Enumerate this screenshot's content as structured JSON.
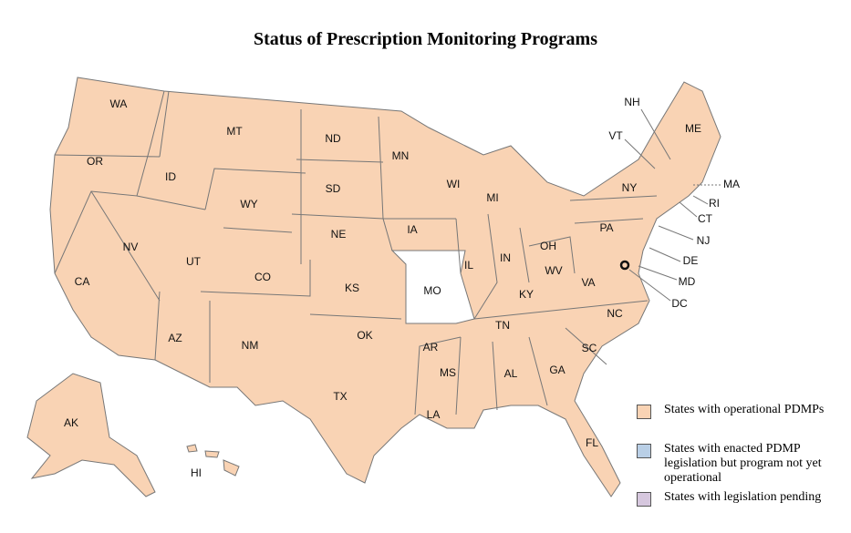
{
  "title": "Status of Prescription Monitoring Programs",
  "legend": [
    {
      "label": "States with operational PDMPs",
      "color": "#f9d3b4"
    },
    {
      "label": "States with enacted PDMP legislation but program not yet operational",
      "color": "#b9cfe6"
    },
    {
      "label": "States with legislation pending",
      "color": "#d6c7de"
    }
  ],
  "states": [
    {
      "label": "WA",
      "color": "#f9d3b4"
    },
    {
      "label": "OR",
      "color": "#f9d3b4"
    },
    {
      "label": "CA",
      "color": "#f9d3b4"
    },
    {
      "label": "NV",
      "color": "#f9d3b4"
    },
    {
      "label": "ID",
      "color": "#f9d3b4"
    },
    {
      "label": "MT",
      "color": "#f9d3b4"
    },
    {
      "label": "WY",
      "color": "#f9d3b4"
    },
    {
      "label": "UT",
      "color": "#f9d3b4"
    },
    {
      "label": "AZ",
      "color": "#f9d3b4"
    },
    {
      "label": "CO",
      "color": "#f9d3b4"
    },
    {
      "label": "NM",
      "color": "#f9d3b4"
    },
    {
      "label": "ND",
      "color": "#f9d3b4"
    },
    {
      "label": "SD",
      "color": "#f9d3b4"
    },
    {
      "label": "NE",
      "color": "#f9d3b4"
    },
    {
      "label": "KS",
      "color": "#f9d3b4"
    },
    {
      "label": "OK",
      "color": "#f9d3b4"
    },
    {
      "label": "TX",
      "color": "#f9d3b4"
    },
    {
      "label": "MN",
      "color": "#f9d3b4"
    },
    {
      "label": "IA",
      "color": "#f9d3b4"
    },
    {
      "label": "MO",
      "color": "#ffffff"
    },
    {
      "label": "AR",
      "color": "#f9d3b4"
    },
    {
      "label": "LA",
      "color": "#f9d3b4"
    },
    {
      "label": "WI",
      "color": "#f9d3b4"
    },
    {
      "label": "IL",
      "color": "#f9d3b4"
    },
    {
      "label": "MS",
      "color": "#f9d3b4"
    },
    {
      "label": "MI",
      "color": "#f9d3b4"
    },
    {
      "label": "IN",
      "color": "#f9d3b4"
    },
    {
      "label": "KY",
      "color": "#f9d3b4"
    },
    {
      "label": "TN",
      "color": "#f9d3b4"
    },
    {
      "label": "AL",
      "color": "#f9d3b4"
    },
    {
      "label": "OH",
      "color": "#f9d3b4"
    },
    {
      "label": "GA",
      "color": "#f9d3b4"
    },
    {
      "label": "FL",
      "color": "#f9d3b4"
    },
    {
      "label": "SC",
      "color": "#f9d3b4"
    },
    {
      "label": "NC",
      "color": "#f9d3b4"
    },
    {
      "label": "VA",
      "color": "#f9d3b4"
    },
    {
      "label": "WV",
      "color": "#f9d3b4"
    },
    {
      "label": "PA",
      "color": "#f9d3b4"
    },
    {
      "label": "NY",
      "color": "#f9d3b4"
    },
    {
      "label": "ME",
      "color": "#f9d3b4"
    },
    {
      "label": "NH",
      "color": "#f9d3b4"
    },
    {
      "label": "VT",
      "color": "#f9d3b4"
    },
    {
      "label": "MA",
      "color": "#f9d3b4"
    },
    {
      "label": "RI",
      "color": "#f9d3b4"
    },
    {
      "label": "CT",
      "color": "#f9d3b4"
    },
    {
      "label": "NJ",
      "color": "#f9d3b4"
    },
    {
      "label": "DE",
      "color": "#f9d3b4"
    },
    {
      "label": "MD",
      "color": "#f9d3b4"
    },
    {
      "label": "DC",
      "color": "#f9d3b4"
    },
    {
      "label": "AK",
      "color": "#f9d3b4"
    },
    {
      "label": "HI",
      "color": "#f9d3b4"
    }
  ]
}
